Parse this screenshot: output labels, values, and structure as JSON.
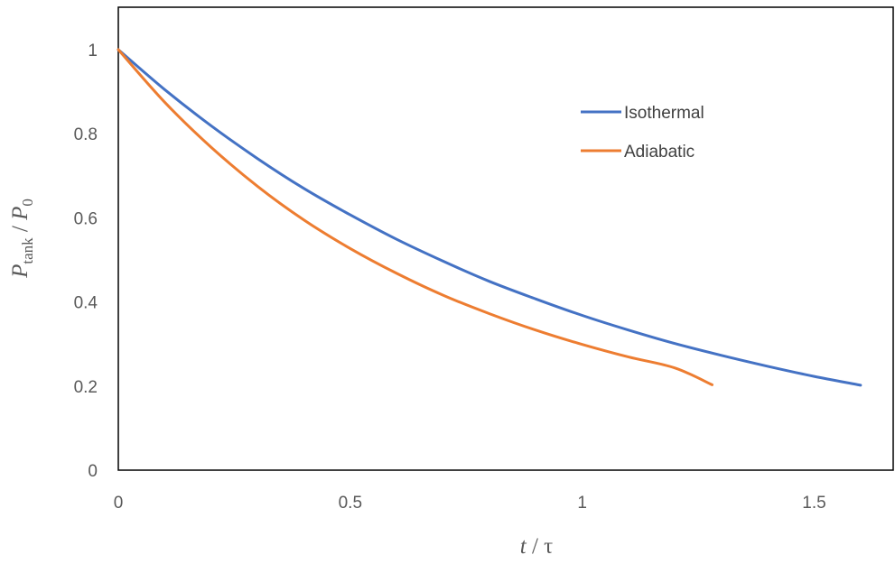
{
  "chart_data": {
    "type": "line",
    "xlim": [
      0,
      1.7
    ],
    "ylim": [
      0,
      1.1
    ],
    "x_ticks": [
      0,
      0.5,
      1,
      1.5
    ],
    "x_tick_labels": [
      "0",
      "0.5",
      "1",
      "1.5"
    ],
    "y_ticks": [
      0,
      0.2,
      0.4,
      0.6,
      0.8,
      1
    ],
    "y_tick_labels": [
      "0",
      "0.2",
      "0.4",
      "0.6",
      "0.8",
      "1"
    ],
    "xlabel": {
      "var": "t",
      "sep": " / ",
      "sym": "τ"
    },
    "ylabel": {
      "var": "P",
      "sub": "tank",
      "sep": " / ",
      "var2": "P",
      "sub2": "0"
    },
    "grid": false,
    "legend_position": "top-right",
    "series": [
      {
        "name": "Isothermal",
        "color": "#4472C4",
        "x": [
          0,
          0.1,
          0.2,
          0.3,
          0.4,
          0.5,
          0.6,
          0.7,
          0.8,
          0.9,
          1.0,
          1.1,
          1.2,
          1.3,
          1.4,
          1.5,
          1.6
        ],
        "y": [
          1.0,
          0.905,
          0.819,
          0.741,
          0.67,
          0.607,
          0.549,
          0.497,
          0.449,
          0.407,
          0.368,
          0.333,
          0.301,
          0.273,
          0.247,
          0.223,
          0.202
        ]
      },
      {
        "name": "Adiabatic",
        "color": "#ED7D31",
        "x": [
          0,
          0.1,
          0.2,
          0.3,
          0.4,
          0.5,
          0.6,
          0.7,
          0.8,
          0.9,
          1.0,
          1.1,
          1.2,
          1.28
        ],
        "y": [
          1.0,
          0.875,
          0.768,
          0.675,
          0.595,
          0.527,
          0.468,
          0.416,
          0.372,
          0.333,
          0.299,
          0.269,
          0.243,
          0.203
        ]
      }
    ]
  }
}
